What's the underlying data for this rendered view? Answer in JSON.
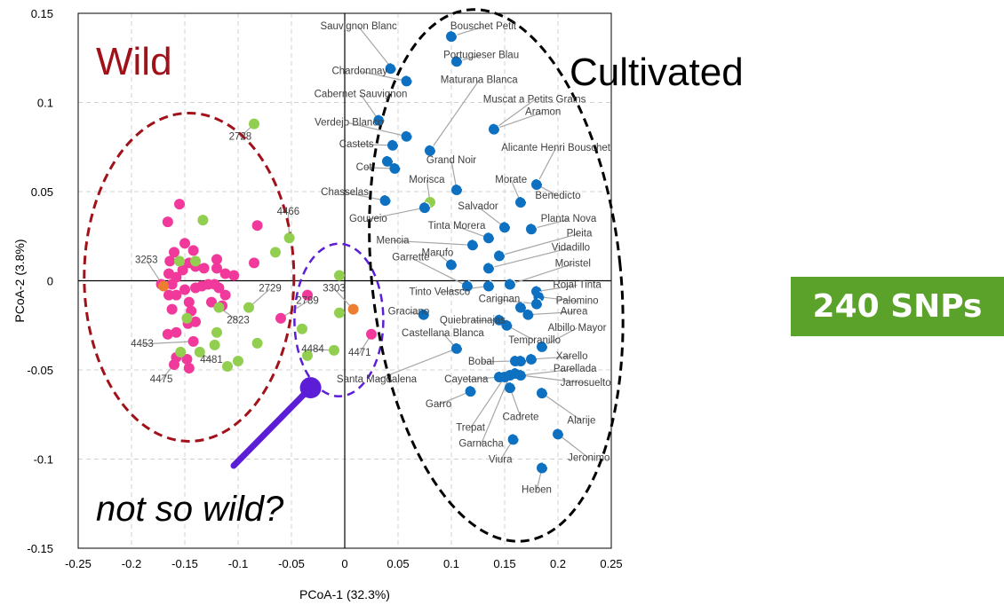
{
  "chart_data": {
    "type": "scatter",
    "xlabel": "PCoA-1 (32.3%)",
    "ylabel": "PCoA-2 (3.8%)",
    "xlim": [
      -0.25,
      0.25
    ],
    "ylim": [
      -0.15,
      0.15
    ],
    "x_ticks": [
      "-0.25",
      "-0.2",
      "-0.15",
      "-0.1",
      "-0.05",
      "0",
      "0.05",
      "0.1",
      "0.15",
      "0.2",
      "0.25"
    ],
    "y_ticks": [
      "0.15",
      "0.1",
      "0.05",
      "0",
      "-0.05",
      "-0.1",
      "-0.15"
    ],
    "grid": "dashed",
    "colors": {
      "wild": "#f0399a",
      "green": "#92cf50",
      "orange": "#ed7d31",
      "cultivated": "#0e70c0",
      "wild_ellipse": "#a0111a",
      "purple": "#5b1ed6"
    },
    "annotations": {
      "wild": "Wild",
      "cultivated": "Cultivated",
      "question": "not so wild?"
    },
    "wild_points": [
      [
        -0.155,
        0.043
      ],
      [
        -0.166,
        0.033
      ],
      [
        -0.15,
        0.021
      ],
      [
        -0.16,
        0.016
      ],
      [
        -0.142,
        0.017
      ],
      [
        -0.146,
        0.01
      ],
      [
        -0.164,
        0.011
      ],
      [
        -0.14,
        0.008
      ],
      [
        -0.132,
        0.007
      ],
      [
        -0.12,
        0.012
      ],
      [
        -0.12,
        0.007
      ],
      [
        -0.112,
        0.004
      ],
      [
        -0.104,
        0.003
      ],
      [
        -0.152,
        0.006
      ],
      [
        -0.158,
        0.002
      ],
      [
        -0.162,
        -0.002
      ],
      [
        -0.165,
        0.004
      ],
      [
        -0.172,
        -0.002
      ],
      [
        -0.15,
        -0.005
      ],
      [
        -0.14,
        -0.004
      ],
      [
        -0.134,
        -0.003
      ],
      [
        -0.128,
        -0.002
      ],
      [
        -0.122,
        -0.002
      ],
      [
        -0.118,
        -0.004
      ],
      [
        -0.146,
        -0.012
      ],
      [
        -0.158,
        -0.008
      ],
      [
        -0.165,
        -0.008
      ],
      [
        -0.112,
        -0.008
      ],
      [
        -0.125,
        -0.012
      ],
      [
        -0.115,
        -0.014
      ],
      [
        -0.144,
        -0.017
      ],
      [
        -0.162,
        -0.016
      ],
      [
        -0.147,
        -0.024
      ],
      [
        -0.14,
        -0.023
      ],
      [
        -0.166,
        -0.03
      ],
      [
        -0.158,
        -0.029
      ],
      [
        -0.142,
        -0.034
      ],
      [
        -0.158,
        -0.043
      ],
      [
        -0.148,
        -0.044
      ],
      [
        -0.16,
        -0.047
      ],
      [
        -0.146,
        -0.049
      ],
      [
        -0.082,
        0.031
      ],
      [
        -0.085,
        0.01
      ],
      [
        -0.06,
        -0.021
      ],
      [
        -0.035,
        -0.008
      ],
      [
        0.025,
        -0.03
      ]
    ],
    "green_points": [
      [
        -0.085,
        0.088
      ],
      [
        -0.133,
        0.034
      ],
      [
        -0.052,
        0.024
      ],
      [
        -0.065,
        0.016
      ],
      [
        -0.155,
        0.011
      ],
      [
        -0.14,
        0.011
      ],
      [
        -0.118,
        -0.015
      ],
      [
        -0.09,
        -0.015
      ],
      [
        -0.148,
        -0.021
      ],
      [
        -0.12,
        -0.029
      ],
      [
        -0.082,
        -0.035
      ],
      [
        -0.122,
        -0.036
      ],
      [
        -0.154,
        -0.04
      ],
      [
        -0.136,
        -0.04
      ],
      [
        -0.1,
        -0.045
      ],
      [
        -0.11,
        -0.048
      ],
      [
        -0.04,
        -0.027
      ],
      [
        -0.035,
        -0.042
      ],
      [
        -0.01,
        -0.039
      ],
      [
        -0.005,
        0.003
      ],
      [
        -0.005,
        -0.018
      ],
      [
        0.08,
        0.044
      ]
    ],
    "orange_points": [
      [
        -0.17,
        -0.003
      ],
      [
        0.008,
        -0.016
      ]
    ],
    "cultivated_points": [
      [
        0.1,
        0.137
      ],
      [
        0.105,
        0.123
      ],
      [
        0.043,
        0.119
      ],
      [
        0.058,
        0.112
      ],
      [
        0.14,
        0.085
      ],
      [
        0.058,
        0.081
      ],
      [
        0.045,
        0.076
      ],
      [
        0.08,
        0.073
      ],
      [
        0.032,
        0.09
      ],
      [
        0.04,
        0.067
      ],
      [
        0.047,
        0.063
      ],
      [
        0.105,
        0.051
      ],
      [
        0.18,
        0.054
      ],
      [
        0.165,
        0.044
      ],
      [
        0.038,
        0.045
      ],
      [
        0.075,
        0.041
      ],
      [
        0.15,
        0.03
      ],
      [
        0.175,
        0.029
      ],
      [
        0.135,
        0.024
      ],
      [
        0.12,
        0.02
      ],
      [
        0.145,
        0.014
      ],
      [
        0.1,
        0.009
      ],
      [
        0.135,
        0.007
      ],
      [
        0.115,
        -0.003
      ],
      [
        0.135,
        -0.003
      ],
      [
        0.155,
        -0.002
      ],
      [
        0.18,
        -0.006
      ],
      [
        0.182,
        -0.009
      ],
      [
        0.18,
        -0.013
      ],
      [
        0.165,
        -0.015
      ],
      [
        0.172,
        -0.019
      ],
      [
        0.074,
        -0.019
      ],
      [
        0.145,
        -0.022
      ],
      [
        0.152,
        -0.025
      ],
      [
        0.105,
        -0.038
      ],
      [
        0.185,
        -0.037
      ],
      [
        0.16,
        -0.045
      ],
      [
        0.165,
        -0.045
      ],
      [
        0.175,
        -0.044
      ],
      [
        0.145,
        -0.054
      ],
      [
        0.15,
        -0.054
      ],
      [
        0.155,
        -0.053
      ],
      [
        0.16,
        -0.052
      ],
      [
        0.165,
        -0.053
      ],
      [
        0.118,
        -0.062
      ],
      [
        0.155,
        -0.06
      ],
      [
        0.185,
        -0.063
      ],
      [
        0.2,
        -0.086
      ],
      [
        0.158,
        -0.089
      ],
      [
        0.185,
        -0.105
      ]
    ],
    "highlight_point": [
      -0.032,
      -0.06
    ],
    "labels": [
      {
        "t": "Sauvignon Blanc",
        "x": 0.013,
        "y": 0.141,
        "px": 0.043,
        "py": 0.12
      },
      {
        "t": "Bouschet Petit",
        "x": 0.13,
        "y": 0.141,
        "px": 0.1,
        "py": 0.137
      },
      {
        "t": "Portugieser Blau",
        "x": 0.128,
        "y": 0.125,
        "px": 0.105,
        "py": 0.123
      },
      {
        "t": "Chardonnay",
        "x": 0.014,
        "y": 0.116,
        "px": 0.058,
        "py": 0.112
      },
      {
        "t": "Maturana Blanca",
        "x": 0.126,
        "y": 0.111,
        "px": 0.08,
        "py": 0.073
      },
      {
        "t": "Cabernet Sauvignon",
        "x": 0.015,
        "y": 0.103,
        "px": 0.032,
        "py": 0.09
      },
      {
        "t": "Muscat a Petits Grains",
        "x": 0.178,
        "y": 0.1,
        "px": 0.14,
        "py": 0.085
      },
      {
        "t": "Aramon",
        "x": 0.186,
        "y": 0.093,
        "px": 0.14,
        "py": 0.085
      },
      {
        "t": "Verdejo Blanco",
        "x": 0.004,
        "y": 0.087,
        "px": 0.058,
        "py": 0.081
      },
      {
        "t": "Castets",
        "x": 0.011,
        "y": 0.075,
        "px": 0.045,
        "py": 0.076
      },
      {
        "t": "Alicante Henri Bouschet",
        "x": 0.198,
        "y": 0.073,
        "px": 0.18,
        "py": 0.054
      },
      {
        "t": "Grand Noir",
        "x": 0.1,
        "y": 0.066,
        "px": 0.105,
        "py": 0.051
      },
      {
        "t": "Cot",
        "x": 0.018,
        "y": 0.062,
        "px": 0.047,
        "py": 0.063
      },
      {
        "t": "Morisca",
        "x": 0.077,
        "y": 0.055,
        "px": 0.08,
        "py": 0.044
      },
      {
        "t": "Morate",
        "x": 0.156,
        "y": 0.055,
        "px": 0.165,
        "py": 0.044
      },
      {
        "t": "Chasselas",
        "x": 0.0,
        "y": 0.048,
        "px": 0.038,
        "py": 0.045
      },
      {
        "t": "Benedicto",
        "x": 0.2,
        "y": 0.046,
        "px": 0.18,
        "py": 0.054
      },
      {
        "t": "Salvador",
        "x": 0.125,
        "y": 0.04,
        "px": 0.15,
        "py": 0.03
      },
      {
        "t": "Gouveio",
        "x": 0.022,
        "y": 0.033,
        "px": 0.075,
        "py": 0.041
      },
      {
        "t": "Planta Nova",
        "x": 0.21,
        "y": 0.033,
        "px": 0.175,
        "py": 0.029
      },
      {
        "t": "Tinta Morera",
        "x": 0.105,
        "y": 0.029,
        "px": 0.135,
        "py": 0.024
      },
      {
        "t": "Mencia",
        "x": 0.045,
        "y": 0.021,
        "px": 0.12,
        "py": 0.02
      },
      {
        "t": "Pleita",
        "x": 0.22,
        "y": 0.025,
        "px": 0.145,
        "py": 0.014
      },
      {
        "t": "Vidadillo",
        "x": 0.212,
        "y": 0.017,
        "px": 0.135,
        "py": 0.007
      },
      {
        "t": "Marufo",
        "x": 0.087,
        "y": 0.014,
        "px": 0.1,
        "py": 0.009
      },
      {
        "t": "Moristel",
        "x": 0.214,
        "y": 0.008,
        "px": 0.155,
        "py": -0.002
      },
      {
        "t": "Garrette",
        "x": 0.062,
        "y": 0.0115,
        "px": 0.115,
        "py": -0.003
      },
      {
        "t": "Rojal Tinta",
        "x": 0.218,
        "y": -0.004,
        "px": 0.18,
        "py": -0.006
      },
      {
        "t": "Tinto Velasco",
        "x": 0.089,
        "y": -0.008,
        "px": 0.135,
        "py": -0.003
      },
      {
        "t": "Palomino",
        "x": 0.218,
        "y": -0.013,
        "px": 0.182,
        "py": -0.009
      },
      {
        "t": "Carignan",
        "x": 0.145,
        "y": -0.012,
        "px": 0.18,
        "py": -0.013
      },
      {
        "t": "Aurea",
        "x": 0.215,
        "y": -0.019,
        "px": 0.172,
        "py": -0.019
      },
      {
        "t": "Graciano",
        "x": 0.06,
        "y": -0.019,
        "px": 0.074,
        "py": -0.019
      },
      {
        "t": "Quiebratinajas",
        "x": 0.12,
        "y": -0.024,
        "px": 0.145,
        "py": -0.022
      },
      {
        "t": "Albillo Mayor",
        "x": 0.218,
        "y": -0.028,
        "px": 0.185,
        "py": -0.037
      },
      {
        "t": "Castellana Blanca",
        "x": 0.092,
        "y": -0.031,
        "px": 0.105,
        "py": -0.038
      },
      {
        "t": "Tempranillo",
        "x": 0.178,
        "y": -0.035,
        "px": 0.152,
        "py": -0.025
      },
      {
        "t": "Bobal",
        "x": 0.128,
        "y": -0.047,
        "px": 0.16,
        "py": -0.045
      },
      {
        "t": "Xarello",
        "x": 0.213,
        "y": -0.044,
        "px": 0.175,
        "py": -0.044
      },
      {
        "t": "Parellada",
        "x": 0.216,
        "y": -0.051,
        "px": 0.165,
        "py": -0.053
      },
      {
        "t": "Santa Magdalena",
        "x": 0.03,
        "y": -0.057,
        "px": 0.105,
        "py": -0.038
      },
      {
        "t": "Cayetana",
        "x": 0.114,
        "y": -0.057,
        "px": 0.145,
        "py": -0.054
      },
      {
        "t": "Jarrosuelto",
        "x": 0.226,
        "y": -0.059,
        "px": 0.165,
        "py": -0.053
      },
      {
        "t": "Garro",
        "x": 0.088,
        "y": -0.071,
        "px": 0.118,
        "py": -0.062
      },
      {
        "t": "Cadrete",
        "x": 0.165,
        "y": -0.078,
        "px": 0.155,
        "py": -0.06
      },
      {
        "t": "Alarije",
        "x": 0.222,
        "y": -0.08,
        "px": 0.185,
        "py": -0.063
      },
      {
        "t": "Trepat",
        "x": 0.118,
        "y": -0.084,
        "px": 0.15,
        "py": -0.054
      },
      {
        "t": "Garnacha",
        "x": 0.128,
        "y": -0.093,
        "px": 0.155,
        "py": -0.053
      },
      {
        "t": "Jeronimo",
        "x": 0.229,
        "y": -0.101,
        "px": 0.2,
        "py": -0.086
      },
      {
        "t": "Viura",
        "x": 0.146,
        "y": -0.102,
        "px": 0.158,
        "py": -0.089
      },
      {
        "t": "Heben",
        "x": 0.18,
        "y": -0.119,
        "px": 0.185,
        "py": -0.105
      },
      {
        "t": "2728",
        "x": -0.098,
        "y": 0.079,
        "px": -0.085,
        "py": 0.088
      },
      {
        "t": "4466",
        "x": -0.053,
        "y": 0.037,
        "px": -0.052,
        "py": 0.024
      },
      {
        "t": "3253",
        "x": -0.186,
        "y": 0.01,
        "px": -0.17,
        "py": -0.003
      },
      {
        "t": "2729",
        "x": -0.07,
        "y": -0.006,
        "px": -0.09,
        "py": -0.015
      },
      {
        "t": "3303",
        "x": -0.01,
        "y": -0.006,
        "px": 0.008,
        "py": -0.016
      },
      {
        "t": "2789",
        "x": -0.035,
        "y": -0.013,
        "px": -0.06,
        "py": -0.021
      },
      {
        "t": "2823",
        "x": -0.1,
        "y": -0.024,
        "px": -0.125,
        "py": -0.012
      },
      {
        "t": "4453",
        "x": -0.19,
        "y": -0.037,
        "px": -0.142,
        "py": -0.034
      },
      {
        "t": "4484",
        "x": -0.03,
        "y": -0.04,
        "px": -0.01,
        "py": -0.039
      },
      {
        "t": "4471",
        "x": 0.014,
        "y": -0.042,
        "px": 0.025,
        "py": -0.03
      },
      {
        "t": "4481",
        "x": -0.125,
        "y": -0.046,
        "px": -0.136,
        "py": -0.04
      },
      {
        "t": "4475",
        "x": -0.172,
        "y": -0.057,
        "px": -0.16,
        "py": -0.047
      }
    ]
  },
  "badge": {
    "text": "240 SNPs"
  }
}
